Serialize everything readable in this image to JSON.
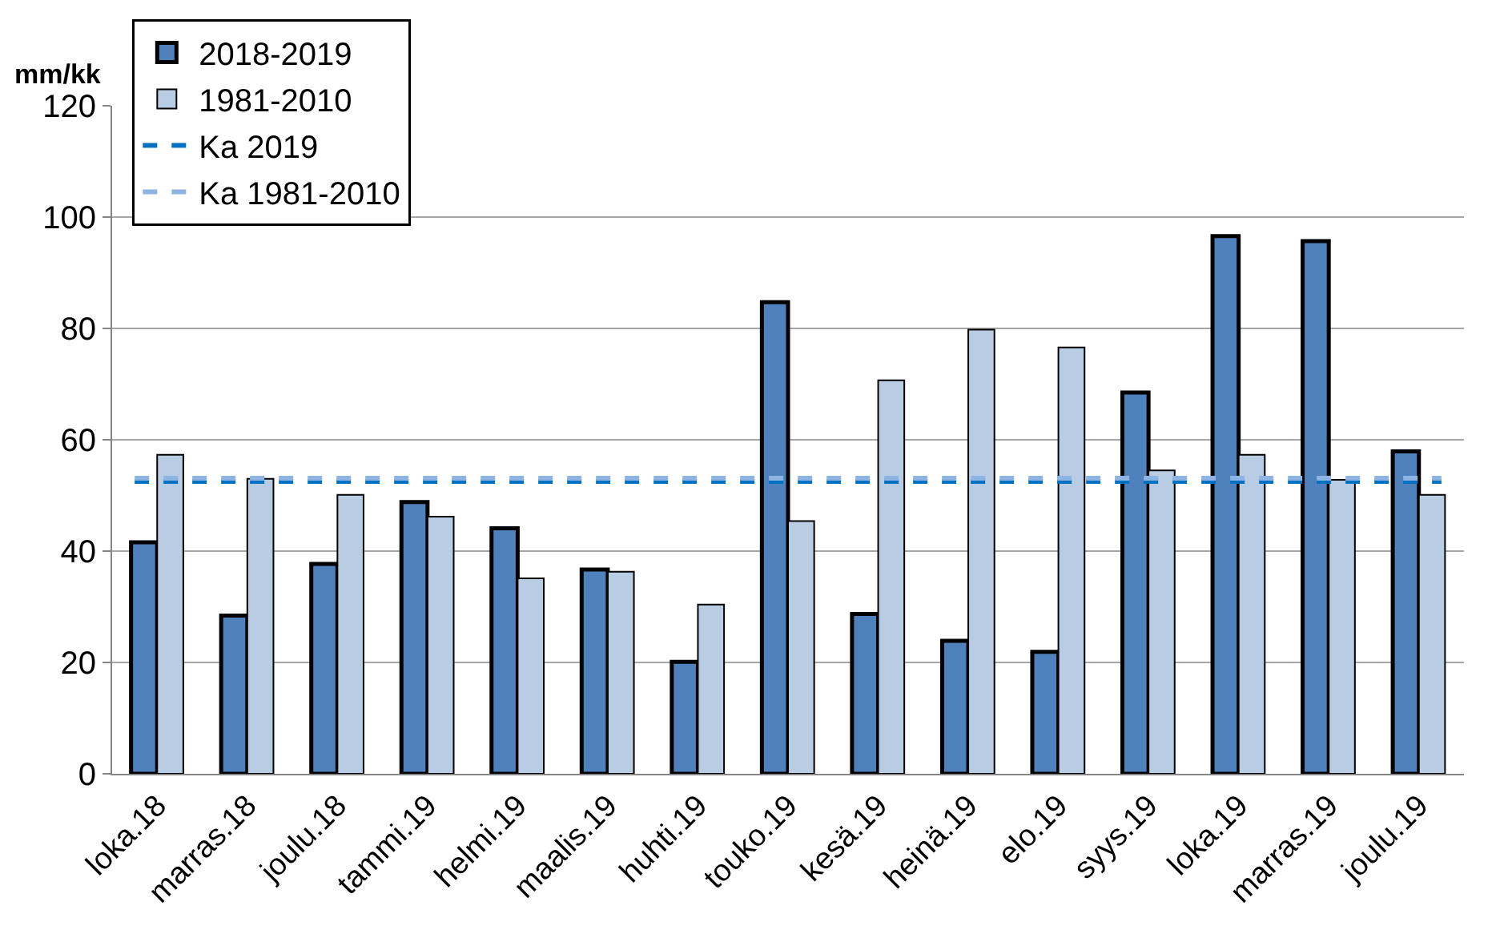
{
  "chart_data": {
    "type": "bar",
    "ylabel": "mm/kk",
    "categories": [
      "loka.18",
      "marras.18",
      "joulu.18",
      "tammi.19",
      "helmi.19",
      "maalis.19",
      "huhti.19",
      "touko.19",
      "kesä.19",
      "heinä.19",
      "elo.19",
      "syys.19",
      "loka.19",
      "marras.19",
      "joulu.19"
    ],
    "series": [
      {
        "name": "2018-2019",
        "color": "#4f81bd",
        "values": [
          41.6,
          28.4,
          37.7,
          48.8,
          44.1,
          36.7,
          20.1,
          84.7,
          28.7,
          23.9,
          21.9,
          68.5,
          96.6,
          95.7,
          57.9
        ]
      },
      {
        "name": "1981-2010",
        "color": "#b8cce4",
        "values": [
          57.3,
          53.0,
          50.1,
          46.2,
          35.1,
          36.3,
          30.4,
          45.4,
          70.7,
          79.8,
          76.6,
          54.5,
          57.3,
          52.8,
          50.1
        ]
      }
    ],
    "ref_lines": [
      {
        "axis": "y",
        "value": 52.5,
        "label": "Ka 2019",
        "color": "#0070c0",
        "line_style": "dashed"
      },
      {
        "axis": "y",
        "value": 53.1,
        "label": "Ka 1981-2010",
        "color": "#8eb4e3",
        "line_style": "dashed"
      }
    ],
    "ylim": [
      0,
      120
    ],
    "yticks": [
      0,
      20,
      40,
      60,
      80,
      100,
      120
    ],
    "grid": "y",
    "legend": "top left"
  }
}
